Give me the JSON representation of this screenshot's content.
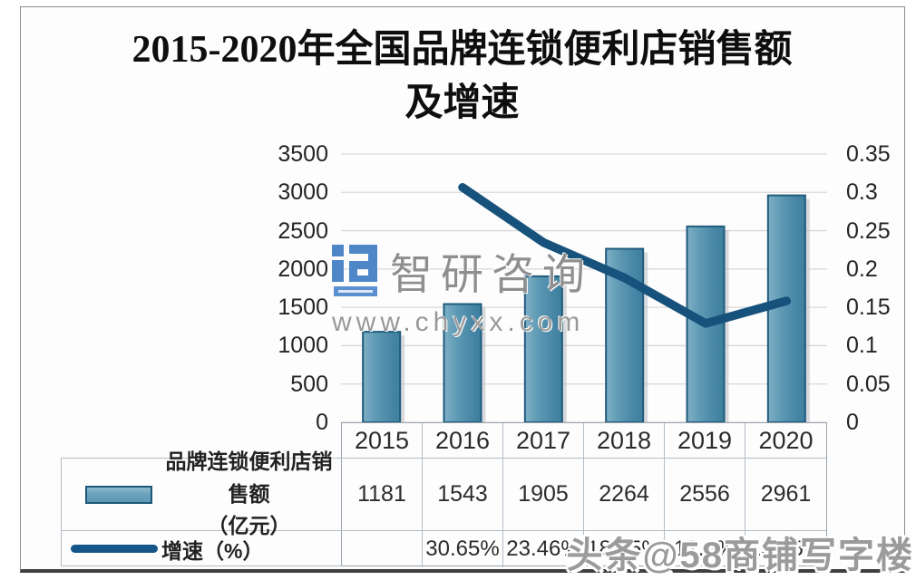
{
  "title": {
    "line1": "2015-2020年全国品牌连锁便利店销售额",
    "line2": "及增速"
  },
  "chart_data": {
    "type": "combo",
    "title": "2015-2020年全国品牌连锁便利店销售额及增速",
    "categories": [
      "2015",
      "2016",
      "2017",
      "2018",
      "2019",
      "2020"
    ],
    "series": [
      {
        "name": "品牌连锁便利店销售额（亿元）",
        "type": "bar",
        "axis": "left",
        "color": "#4e8dad",
        "values": [
          1181,
          1543,
          1905,
          2264,
          2556,
          2961
        ]
      },
      {
        "name": "增速（%）",
        "type": "line",
        "axis": "right",
        "color": "#17527c",
        "values": [
          null,
          0.3065,
          0.2346,
          0.1885,
          0.129,
          0.1585
        ]
      }
    ],
    "left_axis": {
      "min": 0,
      "max": 3500,
      "step": 500,
      "tick_labels": [
        "3500",
        "3000",
        "2500",
        "2000",
        "1500",
        "1000",
        "500",
        "0"
      ]
    },
    "right_axis": {
      "min": 0,
      "max": 0.35,
      "step": 0.05,
      "tick_labels": [
        "0.35",
        "0.3",
        "0.25",
        "0.2",
        "0.15",
        "0.1",
        "0.05",
        "0"
      ]
    },
    "grid": true,
    "legend_position": "bottom-left-table"
  },
  "table": {
    "years": [
      "2015",
      "2016",
      "2017",
      "2018",
      "2019",
      "2020"
    ],
    "sales_values": [
      "1181",
      "1543",
      "1905",
      "2264",
      "2556",
      "2961"
    ],
    "growth_values": [
      "",
      "30.65%",
      "23.46%",
      "18.85%",
      "12.9%",
      "15.85%"
    ],
    "legend": {
      "sales_line1": "品牌连锁便利店销售额",
      "sales_line2": "（亿元）",
      "growth": "增速（%）"
    }
  },
  "watermarks": {
    "center_brand": "智研咨询",
    "center_url": "www.chyxx.com",
    "bottom_right": "头条@58商铺写字楼"
  },
  "colors": {
    "bar_fill": "#4e8dad",
    "bar_border": "#205b7d",
    "line": "#17527c",
    "gridline": "#d8d8d8",
    "table_border": "#b3bdc7",
    "watermark_gray": "#979797",
    "title_text": "#0e0e0e"
  }
}
